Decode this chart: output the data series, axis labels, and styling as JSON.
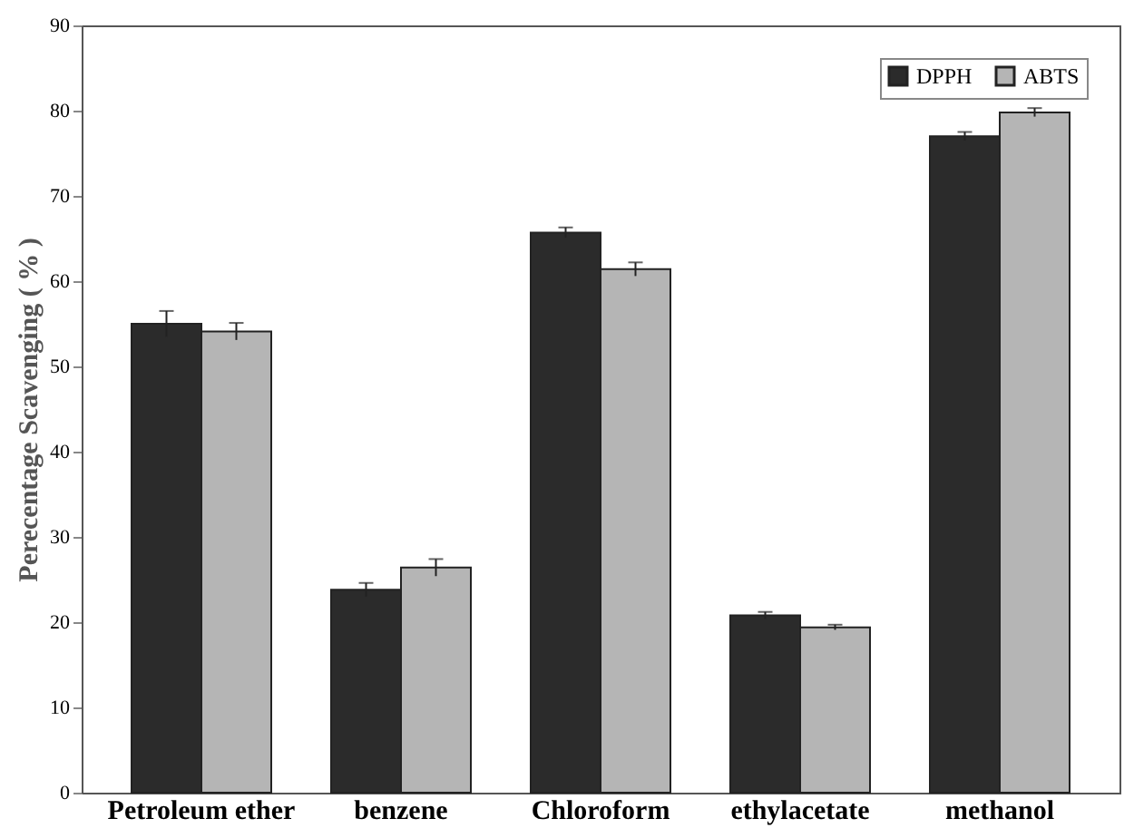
{
  "chart_data": {
    "type": "bar",
    "ylabel": "Perecentage Scavenging ( % )",
    "categories": [
      "Petroleum ether",
      "benzene",
      "Chloroform",
      "ethylacetate",
      "methanol"
    ],
    "series": [
      {
        "name": "DPPH",
        "color": "#2b2b2b",
        "values": [
          55,
          23.8,
          65.7,
          20.8,
          77
        ],
        "errors": [
          1.5,
          0.8,
          0.6,
          0.4,
          0.5
        ]
      },
      {
        "name": "ABTS",
        "color": "#b5b5b5",
        "values": [
          54.1,
          26.4,
          61.4,
          19.4,
          79.8
        ],
        "errors": [
          1,
          1,
          0.8,
          0.3,
          0.5
        ]
      }
    ],
    "ylim": [
      0,
      90
    ],
    "yticks": [
      0,
      10,
      20,
      30,
      40,
      50,
      60,
      70,
      80,
      90
    ],
    "grid": false,
    "legend": "top right"
  }
}
